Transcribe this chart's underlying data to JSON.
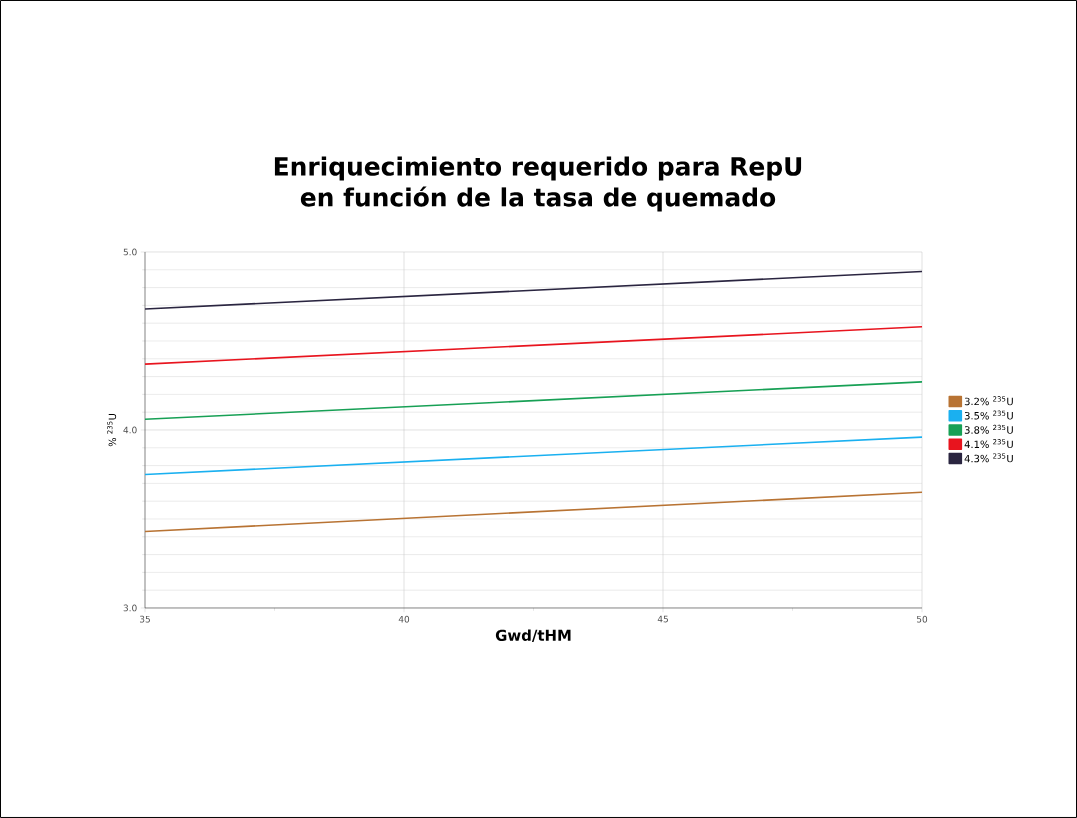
{
  "chart_data": {
    "type": "line",
    "title": "Enriquecimiento requerido para RepU\nen función de la tasa de quemado",
    "xlabel": "Gwd/tHM",
    "ylabel": "% $^{235}$U",
    "x": [
      35,
      50
    ],
    "series": [
      {
        "name": "3.2% $^{235}$U",
        "color": "#b87333",
        "values": [
          3.43,
          3.65
        ]
      },
      {
        "name": "3.5% $^{235}$U",
        "color": "#1ab0f0",
        "values": [
          3.75,
          3.96
        ]
      },
      {
        "name": "3.8% $^{235}$U",
        "color": "#17a055",
        "values": [
          4.06,
          4.27
        ]
      },
      {
        "name": "4.1% $^{235}$U",
        "color": "#e8141e",
        "values": [
          4.37,
          4.58
        ]
      },
      {
        "name": "4.3% $^{235}$U",
        "color": "#2a2540",
        "values": [
          4.68,
          4.89
        ]
      }
    ],
    "xlim": [
      35,
      50
    ],
    "xticks": [
      35,
      40,
      45,
      50
    ],
    "ylim": [
      3,
      5
    ],
    "yticks": [
      {
        "value": 3,
        "label": "3.0"
      },
      {
        "value": 4,
        "label": "4.0"
      },
      {
        "value": 5,
        "label": "5.0"
      }
    ],
    "grid": true,
    "legend": "right",
    "marker": "none",
    "line_style": "solid"
  }
}
